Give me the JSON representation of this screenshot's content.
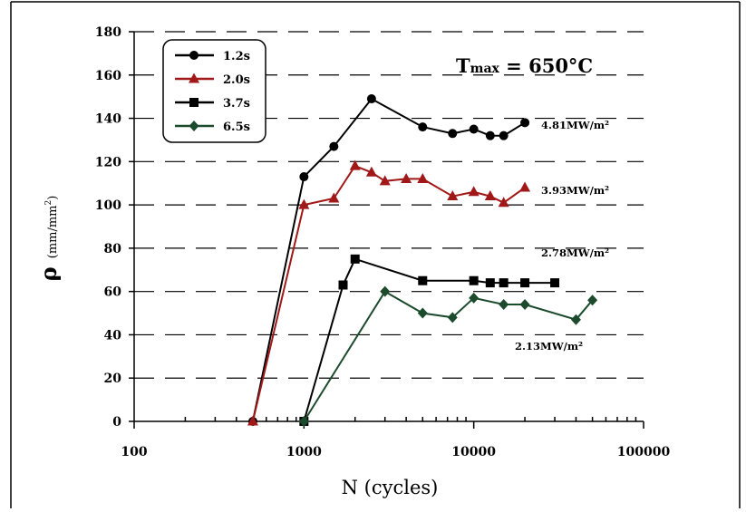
{
  "chart_data": {
    "type": "line",
    "title": "",
    "annotation_title": "Tmax = 650°C",
    "title_parts": {
      "main": "T",
      "sub": "max",
      "rest": " = 650°C"
    },
    "xlabel": "N (cycles)",
    "ylabel_symbol": "ρ",
    "ylabel_unit_base": "(mm/mm",
    "ylabel_unit_exp": "2",
    "ylabel_unit_close": ")",
    "x_scale": "log",
    "xlim": [
      100,
      100000
    ],
    "ylim": [
      0,
      180
    ],
    "x_ticks": [
      100,
      1000,
      10000,
      100000
    ],
    "x_tick_labels": [
      "100",
      "1000",
      "10000",
      "100000"
    ],
    "y_ticks": [
      0,
      20,
      40,
      60,
      80,
      100,
      120,
      140,
      160,
      180
    ],
    "y_tick_labels": [
      "0",
      "20",
      "40",
      "60",
      "80",
      "100",
      "120",
      "140",
      "160",
      "180"
    ],
    "grid": "horizontal-dashed",
    "legend_position": "top-left",
    "series": [
      {
        "name": "1.2s",
        "color": "#000000",
        "marker": "circle",
        "x": [
          500,
          1000,
          1500,
          2500,
          5000,
          7500,
          10000,
          12500,
          15000,
          20000
        ],
        "y": [
          0,
          113,
          127,
          149,
          136,
          133,
          135,
          132,
          132,
          138
        ],
        "label": "4.81MW/m²"
      },
      {
        "name": "2.0s",
        "color": "#a01818",
        "marker": "triangle",
        "x": [
          500,
          1000,
          1500,
          2000,
          2500,
          3000,
          4000,
          5000,
          7500,
          10000,
          12500,
          15000,
          20000
        ],
        "y": [
          0,
          100,
          103,
          118,
          115,
          111,
          112,
          112,
          104,
          106,
          104,
          101,
          108
        ],
        "label": "3.93MW/m²"
      },
      {
        "name": "3.7s",
        "color": "#000000",
        "marker": "square",
        "x": [
          1000,
          1700,
          2000,
          5000,
          10000,
          12500,
          15000,
          20000,
          30000
        ],
        "y": [
          0,
          63,
          75,
          65,
          65,
          64,
          64,
          64,
          64
        ],
        "label": "2.78MW/m²"
      },
      {
        "name": "6.5s",
        "color": "#1c4a2c",
        "marker": "diamond",
        "x": [
          1000,
          3000,
          5000,
          7500,
          10000,
          15000,
          20000,
          40000,
          50000
        ],
        "y": [
          0,
          60,
          50,
          48,
          57,
          54,
          54,
          47,
          56
        ],
        "label": "2.13MW/m²"
      }
    ]
  }
}
